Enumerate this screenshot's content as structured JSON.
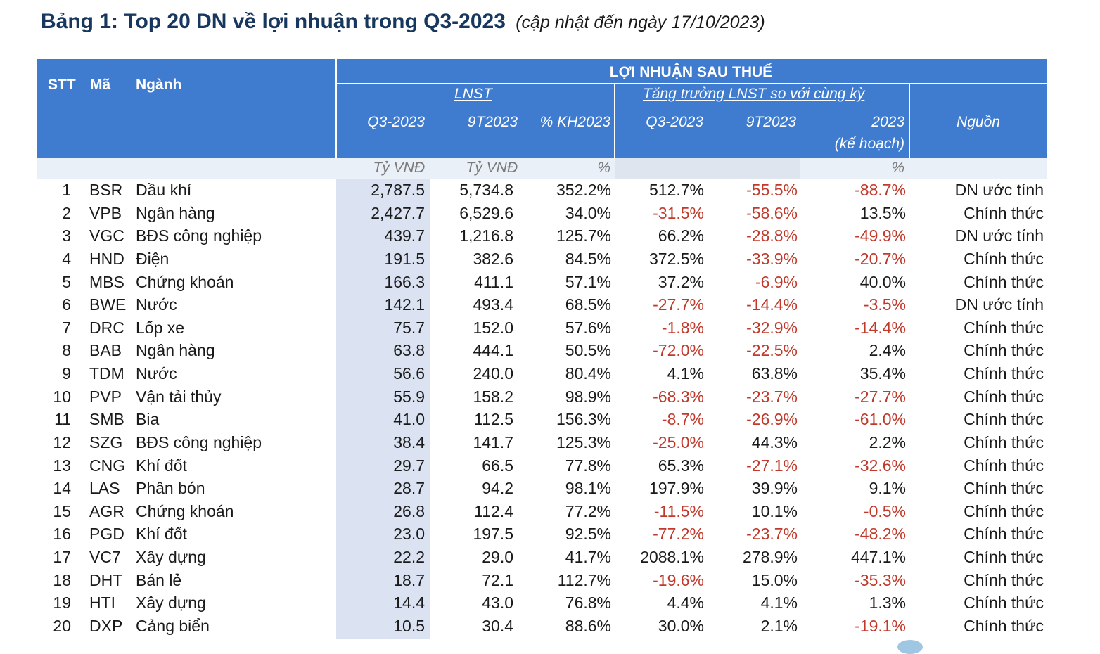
{
  "title": {
    "main": "Bảng 1: Top 20 DN về lợi nhuận trong Q3-2023",
    "subtitle": "(cập nhật đến ngày 17/10/2023)"
  },
  "header": {
    "stt": "STT",
    "ma": "Mã",
    "nganh": "Ngành",
    "group": "LỢI NHUẬN SAU THUẾ",
    "lnst": "LNST",
    "growth": "Tăng trưởng LNST so với cùng kỳ",
    "q3": "Q3-2023",
    "ytd": "9T2023",
    "kh": "% KH2023",
    "g_q3": "Q3-2023",
    "g_ytd": "9T2023",
    "g_2023": "2023",
    "g_2023_note": "(kế hoạch)",
    "source": "Nguồn"
  },
  "units": {
    "q3": "Tỷ VNĐ",
    "ytd": "Tỷ VNĐ",
    "kh": "%",
    "growth": "%"
  },
  "rows": [
    {
      "stt": "1",
      "ma": "BSR",
      "nganh": "Dầu khí",
      "q3": "2,787.5",
      "ytd": "5,734.8",
      "kh": "352.2%",
      "gq3": "512.7%",
      "gytd": "-55.5%",
      "g2023": "-88.7%",
      "src": "DN ước tính"
    },
    {
      "stt": "2",
      "ma": "VPB",
      "nganh": "Ngân hàng",
      "q3": "2,427.7",
      "ytd": "6,529.6",
      "kh": "34.0%",
      "gq3": "-31.5%",
      "gytd": "-58.6%",
      "g2023": "13.5%",
      "src": "Chính thức"
    },
    {
      "stt": "3",
      "ma": "VGC",
      "nganh": "BĐS công nghiệp",
      "q3": "439.7",
      "ytd": "1,216.8",
      "kh": "125.7%",
      "gq3": "66.2%",
      "gytd": "-28.8%",
      "g2023": "-49.9%",
      "src": "DN ước tính"
    },
    {
      "stt": "4",
      "ma": "HND",
      "nganh": "Điện",
      "q3": "191.5",
      "ytd": "382.6",
      "kh": "84.5%",
      "gq3": "372.5%",
      "gytd": "-33.9%",
      "g2023": "-20.7%",
      "src": "Chính thức"
    },
    {
      "stt": "5",
      "ma": "MBS",
      "nganh": "Chứng khoán",
      "q3": "166.3",
      "ytd": "411.1",
      "kh": "57.1%",
      "gq3": "37.2%",
      "gytd": "-6.9%",
      "g2023": "40.0%",
      "src": "Chính thức"
    },
    {
      "stt": "6",
      "ma": "BWE",
      "nganh": "Nước",
      "q3": "142.1",
      "ytd": "493.4",
      "kh": "68.5%",
      "gq3": "-27.7%",
      "gytd": "-14.4%",
      "g2023": "-3.5%",
      "src": "DN ước tính"
    },
    {
      "stt": "7",
      "ma": "DRC",
      "nganh": "Lốp xe",
      "q3": "75.7",
      "ytd": "152.0",
      "kh": "57.6%",
      "gq3": "-1.8%",
      "gytd": "-32.9%",
      "g2023": "-14.4%",
      "src": "Chính thức"
    },
    {
      "stt": "8",
      "ma": "BAB",
      "nganh": "Ngân hàng",
      "q3": "63.8",
      "ytd": "444.1",
      "kh": "50.5%",
      "gq3": "-72.0%",
      "gytd": "-22.5%",
      "g2023": "2.4%",
      "src": "Chính thức"
    },
    {
      "stt": "9",
      "ma": "TDM",
      "nganh": "Nước",
      "q3": "56.6",
      "ytd": "240.0",
      "kh": "80.4%",
      "gq3": "4.1%",
      "gytd": "63.8%",
      "g2023": "35.4%",
      "src": "Chính thức"
    },
    {
      "stt": "10",
      "ma": "PVP",
      "nganh": "Vận tải thủy",
      "q3": "55.9",
      "ytd": "158.2",
      "kh": "98.9%",
      "gq3": "-68.3%",
      "gytd": "-23.7%",
      "g2023": "-27.7%",
      "src": "Chính thức"
    },
    {
      "stt": "11",
      "ma": "SMB",
      "nganh": "Bia",
      "q3": "41.0",
      "ytd": "112.5",
      "kh": "156.3%",
      "gq3": "-8.7%",
      "gytd": "-26.9%",
      "g2023": "-61.0%",
      "src": "Chính thức"
    },
    {
      "stt": "12",
      "ma": "SZG",
      "nganh": "BĐS công nghiệp",
      "q3": "38.4",
      "ytd": "141.7",
      "kh": "125.3%",
      "gq3": "-25.0%",
      "gytd": "44.3%",
      "g2023": "2.2%",
      "src": "Chính thức"
    },
    {
      "stt": "13",
      "ma": "CNG",
      "nganh": "Khí đốt",
      "q3": "29.7",
      "ytd": "66.5",
      "kh": "77.8%",
      "gq3": "65.3%",
      "gytd": "-27.1%",
      "g2023": "-32.6%",
      "src": "Chính thức"
    },
    {
      "stt": "14",
      "ma": "LAS",
      "nganh": "Phân bón",
      "q3": "28.7",
      "ytd": "94.2",
      "kh": "98.1%",
      "gq3": "197.9%",
      "gytd": "39.9%",
      "g2023": "9.1%",
      "src": "Chính thức"
    },
    {
      "stt": "15",
      "ma": "AGR",
      "nganh": "Chứng khoán",
      "q3": "26.8",
      "ytd": "112.4",
      "kh": "77.2%",
      "gq3": "-11.5%",
      "gytd": "10.1%",
      "g2023": "-0.5%",
      "src": "Chính thức"
    },
    {
      "stt": "16",
      "ma": "PGD",
      "nganh": "Khí đốt",
      "q3": "23.0",
      "ytd": "197.5",
      "kh": "92.5%",
      "gq3": "-77.2%",
      "gytd": "-23.7%",
      "g2023": "-48.2%",
      "src": "Chính thức"
    },
    {
      "stt": "17",
      "ma": "VC7",
      "nganh": "Xây dựng",
      "q3": "22.2",
      "ytd": "29.0",
      "kh": "41.7%",
      "gq3": "2088.1%",
      "gytd": "278.9%",
      "g2023": "447.1%",
      "src": "Chính thức"
    },
    {
      "stt": "18",
      "ma": "DHT",
      "nganh": "Bán lẻ",
      "q3": "18.7",
      "ytd": "72.1",
      "kh": "112.7%",
      "gq3": "-19.6%",
      "gytd": "15.0%",
      "g2023": "-35.3%",
      "src": "Chính thức"
    },
    {
      "stt": "19",
      "ma": "HTI",
      "nganh": "Xây dựng",
      "q3": "14.4",
      "ytd": "43.0",
      "kh": "76.8%",
      "gq3": "4.4%",
      "gytd": "4.1%",
      "g2023": "1.3%",
      "src": "Chính thức"
    },
    {
      "stt": "20",
      "ma": "DXP",
      "nganh": "Cảng biển",
      "q3": "10.5",
      "ytd": "30.4",
      "kh": "88.6%",
      "gq3": "30.0%",
      "gytd": "2.1%",
      "g2023": "-19.1%",
      "src": "Chính thức"
    }
  ]
}
